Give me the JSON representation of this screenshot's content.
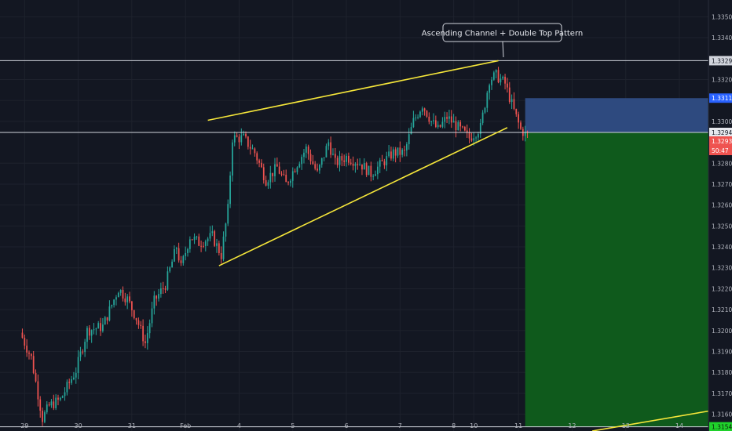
{
  "chart_data": {
    "type": "candlestick",
    "instrument_note": "",
    "annotation": "Ascending Channel + Double Top Pattern",
    "y_ticks": [
      1.335,
      1.334,
      1.332,
      1.331,
      1.33,
      1.328,
      1.327,
      1.326,
      1.325,
      1.324,
      1.323,
      1.322,
      1.321,
      1.32,
      1.319,
      1.318,
      1.317,
      1.316
    ],
    "y_tick_labels": [
      "1.33500",
      "1.33400",
      "1.33200",
      "",
      "1.33000",
      "1.32800",
      "1.32700",
      "1.32600",
      "1.32500",
      "1.32400",
      "1.32300",
      "1.32200",
      "1.32100",
      "1.32000",
      "1.31900",
      "1.31800",
      "1.31700",
      "1.31600"
    ],
    "ylim": [
      1.3152,
      1.3358
    ],
    "x_labels": [
      {
        "label": "29",
        "t": 1
      },
      {
        "label": "30",
        "t": 25
      },
      {
        "label": "31",
        "t": 49
      },
      {
        "label": "Feb",
        "t": 73
      },
      {
        "label": "4",
        "t": 97
      },
      {
        "label": "5",
        "t": 121
      },
      {
        "label": "6",
        "t": 145
      },
      {
        "label": "7",
        "t": 169
      },
      {
        "label": "8",
        "t": 193
      },
      {
        "label": "10",
        "t": 202
      },
      {
        "label": "11",
        "t": 222
      },
      {
        "label": "12",
        "t": 246
      },
      {
        "label": "13",
        "t": 270
      },
      {
        "label": "14",
        "t": 294
      }
    ],
    "xlim": [
      -10,
      307
    ],
    "horizontal_lines": [
      {
        "name": "double-top-level",
        "price": 1.3329,
        "label": "1.33290"
      },
      {
        "name": "entry-level",
        "price": 1.32947,
        "label": "1.32947"
      },
      {
        "name": "target-level",
        "price": 1.3154,
        "label": "1.3154"
      }
    ],
    "price_tags": [
      {
        "name": "stop-price-tag",
        "price": 1.33111,
        "label": "1.33111",
        "color": "#2962ff"
      },
      {
        "name": "current-price-tag",
        "price": 1.32931,
        "label": "1.32931",
        "color": "#ef5350"
      },
      {
        "name": "countdown-tag",
        "price": 1.32885,
        "label": "50:47",
        "color": "#ef5350"
      },
      {
        "name": "target-price-tag",
        "price": 1.3154,
        "label": "1.3154",
        "color": "#1fd12b"
      }
    ],
    "channel_lines": [
      {
        "name": "channel-upper-line",
        "t1": 83,
        "p1": 1.33005,
        "t2": 213,
        "p2": 1.3329
      },
      {
        "name": "channel-lower-line",
        "t1": 88,
        "p1": 1.3231,
        "t2": 217,
        "p2": 1.3297
      },
      {
        "name": "next-channel-line",
        "t1": 255,
        "p1": 1.3152,
        "t2": 307,
        "p2": 1.31615
      }
    ],
    "short_position": {
      "t_start": 225,
      "t_end": 307,
      "entry": 1.32947,
      "stop": 1.33111,
      "target": 1.3154,
      "stop_color": "#2e4a7f",
      "target_color": "#0f5a1c"
    },
    "anchors": [
      {
        "t": 0,
        "p": 1.3199
      },
      {
        "t": 5,
        "p": 1.3187
      },
      {
        "t": 10,
        "p": 1.3158
      },
      {
        "t": 13,
        "p": 1.3164
      },
      {
        "t": 18,
        "p": 1.3167
      },
      {
        "t": 25,
        "p": 1.3181
      },
      {
        "t": 30,
        "p": 1.32
      },
      {
        "t": 37,
        "p": 1.3202
      },
      {
        "t": 44,
        "p": 1.322
      },
      {
        "t": 48,
        "p": 1.3215
      },
      {
        "t": 52,
        "p": 1.3206
      },
      {
        "t": 56,
        "p": 1.3194
      },
      {
        "t": 60,
        "p": 1.3214
      },
      {
        "t": 65,
        "p": 1.3222
      },
      {
        "t": 70,
        "p": 1.324
      },
      {
        "t": 72,
        "p": 1.323
      },
      {
        "t": 76,
        "p": 1.3245
      },
      {
        "t": 80,
        "p": 1.3242
      },
      {
        "t": 86,
        "p": 1.3245
      },
      {
        "t": 90,
        "p": 1.3236
      },
      {
        "t": 93,
        "p": 1.3258
      },
      {
        "t": 95,
        "p": 1.3292
      },
      {
        "t": 100,
        "p": 1.3292
      },
      {
        "t": 105,
        "p": 1.3285
      },
      {
        "t": 110,
        "p": 1.3272
      },
      {
        "t": 115,
        "p": 1.3278
      },
      {
        "t": 119,
        "p": 1.327
      },
      {
        "t": 124,
        "p": 1.328
      },
      {
        "t": 128,
        "p": 1.3287
      },
      {
        "t": 133,
        "p": 1.3275
      },
      {
        "t": 138,
        "p": 1.329
      },
      {
        "t": 141,
        "p": 1.328
      },
      {
        "t": 146,
        "p": 1.3283
      },
      {
        "t": 152,
        "p": 1.328
      },
      {
        "t": 157,
        "p": 1.3275
      },
      {
        "t": 162,
        "p": 1.328
      },
      {
        "t": 167,
        "p": 1.3285
      },
      {
        "t": 172,
        "p": 1.3285
      },
      {
        "t": 176,
        "p": 1.33
      },
      {
        "t": 180,
        "p": 1.3308
      },
      {
        "t": 184,
        "p": 1.33
      },
      {
        "t": 187,
        "p": 1.3296
      },
      {
        "t": 191,
        "p": 1.3302
      },
      {
        "t": 196,
        "p": 1.3297
      },
      {
        "t": 201,
        "p": 1.3292
      },
      {
        "t": 206,
        "p": 1.3297
      },
      {
        "t": 210,
        "p": 1.332
      },
      {
        "t": 213,
        "p": 1.3322
      },
      {
        "t": 217,
        "p": 1.3318
      },
      {
        "t": 221,
        "p": 1.3305
      },
      {
        "t": 224,
        "p": 1.3296
      },
      {
        "t": 226,
        "p": 1.3294
      }
    ],
    "colors": {
      "up": "#26a69a",
      "down": "#ef5350",
      "channel": "#f5e63a",
      "grid": "#1e222d",
      "axis_text": "#b2b5be"
    }
  }
}
